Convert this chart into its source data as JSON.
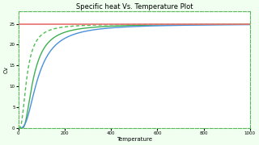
{
  "title": "Specific heat Vs. Temperature Plot",
  "xlabel": "Temperature",
  "ylabel": "Cv",
  "xlim": [
    0,
    1000
  ],
  "ylim": [
    0,
    28
  ],
  "dulong_petit_value": 24.9,
  "dulong_petit_color": "#e87070",
  "einstein_color": "#3cb050",
  "debye_color": "#4a90d9",
  "debye2_color": "#4ec04e",
  "bg_color": "#f0fff0",
  "plot_bg": "#ffffff",
  "border_color": "#5ab85a",
  "einstein_theta": 200,
  "debye_theta": 350,
  "debye2_theta": 150,
  "title_fontsize": 6,
  "axis_fontsize": 5,
  "tick_fontsize": 4
}
